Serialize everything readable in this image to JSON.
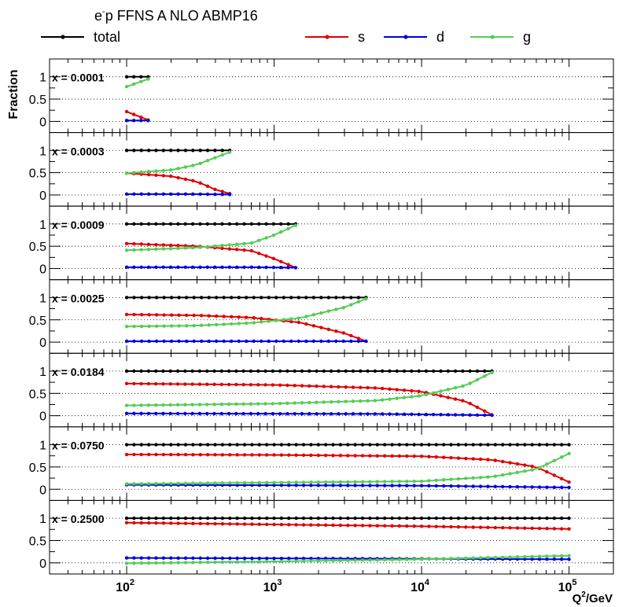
{
  "chart_data": {
    "type": "line",
    "title": "e⁻p FFNS A NLO ABMP16",
    "title_main": "e",
    "title_sup": "-",
    "title_rest": "p FFNS A NLO ABMP16",
    "ylabel": "Fraction",
    "xlabel": "Q²/GeV",
    "xlabel_pre": "Q",
    "xlabel_sup": "2",
    "xlabel_post": "/GeV",
    "x_scale": "log",
    "xlim": [
      30,
      200000
    ],
    "ylim": [
      -0.25,
      1.4
    ],
    "x_ticks": [
      {
        "value": 100,
        "base": "10",
        "exp": "2"
      },
      {
        "value": 1000,
        "base": "10",
        "exp": "3"
      },
      {
        "value": 10000,
        "base": "10",
        "exp": "4"
      },
      {
        "value": 100000,
        "base": "10",
        "exp": "5"
      }
    ],
    "y_ticks": [
      {
        "value": 0,
        "label": "0"
      },
      {
        "value": 0.5,
        "label": "0.5"
      },
      {
        "value": 1,
        "label": "1"
      }
    ],
    "grid": "horizontal dotted at 0, 0.5, 1",
    "legend": [
      {
        "name": "total",
        "color": "#000000"
      },
      {
        "name": "s",
        "color": "#e00000"
      },
      {
        "name": "d",
        "color": "#0000e0"
      },
      {
        "name": "g",
        "color": "#55cc55"
      }
    ],
    "panels": [
      {
        "label": "x = 0.0001",
        "x_max": 140,
        "series": {
          "total": [
            [
              100,
              1.0
            ],
            [
              140,
              1.0
            ]
          ],
          "s": [
            [
              100,
              0.22
            ],
            [
              140,
              0.03
            ]
          ],
          "d": [
            [
              100,
              0.02
            ],
            [
              140,
              0.02
            ]
          ],
          "g": [
            [
              100,
              0.78
            ],
            [
              140,
              0.95
            ]
          ]
        }
      },
      {
        "label": "x = 0.0003",
        "x_max": 500,
        "series": {
          "total": [
            [
              100,
              1.0
            ],
            [
              500,
              1.0
            ]
          ],
          "s": [
            [
              100,
              0.49
            ],
            [
              200,
              0.42
            ],
            [
              300,
              0.3
            ],
            [
              400,
              0.12
            ],
            [
              500,
              0.03
            ]
          ],
          "d": [
            [
              100,
              0.02
            ],
            [
              300,
              0.02
            ],
            [
              500,
              0.01
            ]
          ],
          "g": [
            [
              100,
              0.49
            ],
            [
              200,
              0.56
            ],
            [
              300,
              0.68
            ],
            [
              400,
              0.84
            ],
            [
              500,
              0.96
            ]
          ]
        }
      },
      {
        "label": "x = 0.0009",
        "x_max": 1400,
        "series": {
          "total": [
            [
              100,
              1.0
            ],
            [
              1400,
              1.0
            ]
          ],
          "s": [
            [
              100,
              0.56
            ],
            [
              300,
              0.5
            ],
            [
              700,
              0.4
            ],
            [
              1000,
              0.22
            ],
            [
              1400,
              0.02
            ]
          ],
          "d": [
            [
              100,
              0.03
            ],
            [
              700,
              0.03
            ],
            [
              1400,
              0.02
            ]
          ],
          "g": [
            [
              100,
              0.41
            ],
            [
              300,
              0.47
            ],
            [
              700,
              0.57
            ],
            [
              1000,
              0.75
            ],
            [
              1400,
              0.97
            ]
          ]
        }
      },
      {
        "label": "x = 0.0025",
        "x_max": 4200,
        "series": {
          "total": [
            [
              100,
              1.0
            ],
            [
              4200,
              1.0
            ]
          ],
          "s": [
            [
              100,
              0.62
            ],
            [
              300,
              0.6
            ],
            [
              700,
              0.55
            ],
            [
              1500,
              0.44
            ],
            [
              3000,
              0.2
            ],
            [
              4200,
              0.02
            ]
          ],
          "d": [
            [
              100,
              0.02
            ],
            [
              1000,
              0.02
            ],
            [
              4200,
              0.02
            ]
          ],
          "g": [
            [
              100,
              0.35
            ],
            [
              300,
              0.37
            ],
            [
              700,
              0.43
            ],
            [
              1500,
              0.54
            ],
            [
              3000,
              0.78
            ],
            [
              4200,
              0.97
            ]
          ]
        }
      },
      {
        "label": "x = 0.0184",
        "x_max": 30000,
        "series": {
          "total": [
            [
              100,
              1.0
            ],
            [
              30000,
              1.0
            ]
          ],
          "s": [
            [
              100,
              0.72
            ],
            [
              1000,
              0.69
            ],
            [
              5000,
              0.62
            ],
            [
              10000,
              0.54
            ],
            [
              20000,
              0.32
            ],
            [
              30000,
              0.02
            ]
          ],
          "d": [
            [
              100,
              0.05
            ],
            [
              5000,
              0.04
            ],
            [
              30000,
              0.01
            ]
          ],
          "g": [
            [
              100,
              0.23
            ],
            [
              1000,
              0.27
            ],
            [
              5000,
              0.34
            ],
            [
              10000,
              0.45
            ],
            [
              20000,
              0.68
            ],
            [
              30000,
              0.97
            ]
          ]
        }
      },
      {
        "label": "x = 0.0750",
        "x_max": 100000,
        "series": {
          "total": [
            [
              100,
              1.0
            ],
            [
              100000,
              1.0
            ]
          ],
          "s": [
            [
              100,
              0.78
            ],
            [
              1000,
              0.77
            ],
            [
              10000,
              0.74
            ],
            [
              30000,
              0.66
            ],
            [
              60000,
              0.5
            ],
            [
              100000,
              0.16
            ]
          ],
          "d": [
            [
              100,
              0.1
            ],
            [
              10000,
              0.08
            ],
            [
              100000,
              0.04
            ]
          ],
          "g": [
            [
              100,
              0.12
            ],
            [
              1000,
              0.15
            ],
            [
              10000,
              0.18
            ],
            [
              30000,
              0.28
            ],
            [
              60000,
              0.45
            ],
            [
              100000,
              0.8
            ]
          ]
        }
      },
      {
        "label": "x = 0.2500",
        "x_max": 100000,
        "series": {
          "total": [
            [
              100,
              1.0
            ],
            [
              100000,
              1.0
            ]
          ],
          "s": [
            [
              100,
              0.9
            ],
            [
              1000,
              0.86
            ],
            [
              10000,
              0.82
            ],
            [
              100000,
              0.76
            ]
          ],
          "d": [
            [
              100,
              0.11
            ],
            [
              1000,
              0.1
            ],
            [
              100000,
              0.08
            ]
          ],
          "g": [
            [
              100,
              -0.01
            ],
            [
              1000,
              0.03
            ],
            [
              10000,
              0.08
            ],
            [
              100000,
              0.16
            ]
          ]
        }
      }
    ]
  }
}
